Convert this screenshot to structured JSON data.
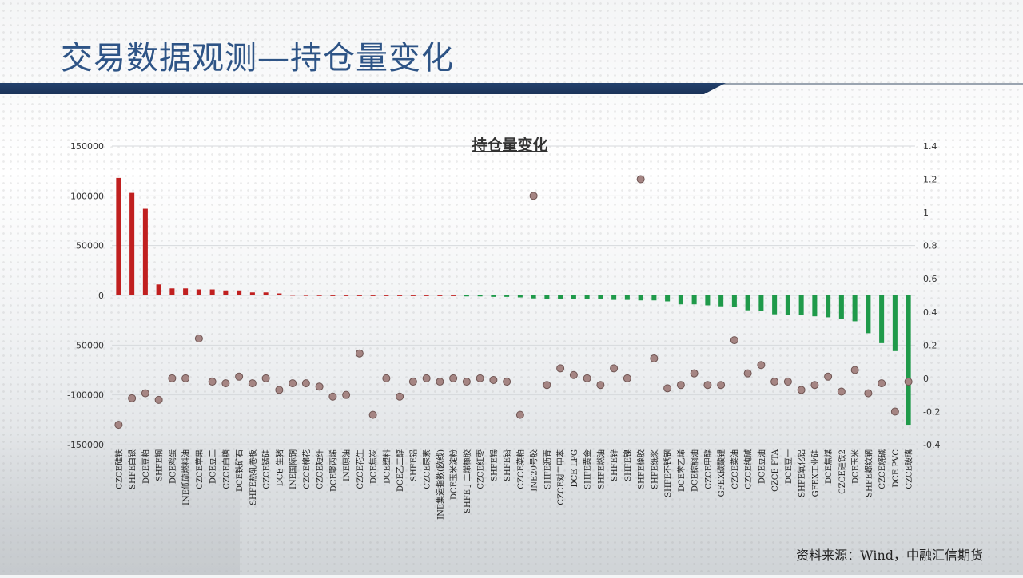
{
  "header": {
    "title": "交易数据观测—持仓量变化"
  },
  "source": "资料来源：Wind，中融汇信期货",
  "colors": {
    "pos_bar": "#c01f1f",
    "neg_bar": "#1f9a4a",
    "dot": "#a58583",
    "title_blue": "#2e5486"
  },
  "chart_data": {
    "type": "bar",
    "title": "持仓量变化",
    "xlabel": "",
    "ylabel": "",
    "ylim": [
      -150000,
      150000
    ],
    "y2lim": [
      -0.4,
      1.4
    ],
    "grid": true,
    "y_ticks": [
      -150000,
      -100000,
      -50000,
      0,
      50000,
      100000,
      150000
    ],
    "y2_ticks": [
      -0.4,
      -0.2,
      0,
      0.2,
      0.4,
      0.6,
      0.8,
      1,
      1.2,
      1.4
    ],
    "categories": [
      "CZCE硅铁",
      "SHFE白银",
      "DCE豆粕",
      "SHFE铜",
      "DCE鸡蛋",
      "INE低硫燃料油",
      "CZCE苹果",
      "DCE豆二",
      "CZCE白糖",
      "DCE铁矿石",
      "SHFE热轧卷板",
      "CZCE锰硅",
      "DCE 生猪",
      "INE国际铜",
      "CZCE棉花",
      "CZCE短纤",
      "DCE聚丙烯",
      "INE原油",
      "CZCE花生",
      "DCE焦炭",
      "DCE塑料",
      "DCE乙二醇",
      "SHFE铝",
      "CZCE尿素",
      "INE集运指数(欧线)",
      "DCE玉米淀粉",
      "SHFE丁二烯橡胶",
      "CZCE红枣",
      "SHFE锡",
      "SHFE铅",
      "CZCE菜粕",
      "INE20号胶",
      "SHFE沥青",
      "CZCE对二甲苯",
      "DCE LPG",
      "SHFE黄金",
      "SHFE燃油",
      "SHFE锌",
      "SHFE镍",
      "SHFE橡胶",
      "SHFE纸浆",
      "SHFE不锈钢",
      "DCE苯乙烯",
      "DCE棕榈油",
      "CZCE甲醇",
      "GFEX碳酸锂",
      "CZCE菜油",
      "CZCE纯碱",
      "DCE豆油",
      "CZCE PTA",
      "DCE豆一",
      "SHFE氧化铝",
      "GFEX工业硅",
      "DCE焦煤",
      "CZCE硅铁2",
      "DCE玉米",
      "SHFE螺纹钢",
      "CZCE烧碱",
      "DCE PVC",
      "CZCE玻璃"
    ],
    "series": [
      {
        "values": [
          118000,
          103000,
          87000,
          11000,
          7000,
          7000,
          6000,
          6000,
          5000,
          5000,
          3000,
          3000,
          2000,
          500,
          300,
          200,
          100,
          100,
          100,
          100,
          100,
          100,
          100,
          100,
          100,
          100,
          -1000,
          -1000,
          -1500,
          -1500,
          -2000,
          -3000,
          -3500,
          -3500,
          -4000,
          -4000,
          -4000,
          -4500,
          -4500,
          -5000,
          -5000,
          -6000,
          -9000,
          -9000,
          -10000,
          -11000,
          -12000,
          -15000,
          -16000,
          -19000,
          -20000,
          -20000,
          -21000,
          -22000,
          -24000,
          -26000,
          -38000,
          -48000,
          -56000,
          -130000
        ]
      },
      {
        "values": [
          -0.28,
          -0.12,
          -0.09,
          -0.13,
          0,
          0,
          0.24,
          -0.02,
          -0.03,
          0.01,
          -0.03,
          0,
          -0.07,
          -0.03,
          -0.03,
          -0.05,
          -0.11,
          -0.1,
          0.15,
          -0.22,
          0,
          -0.11,
          -0.02,
          0,
          -0.02,
          0,
          -0.02,
          0,
          -0.01,
          -0.02,
          -0.22,
          1.1,
          -0.04,
          0.06,
          0.02,
          0,
          -0.04,
          0.06,
          0,
          1.2,
          0.12,
          -0.06,
          -0.04,
          0.03,
          -0.04,
          -0.04,
          0.23,
          0.03,
          0.08,
          -0.02,
          -0.02,
          -0.07,
          -0.04,
          0.01,
          -0.08,
          0.05,
          -0.09,
          -0.03,
          -0.2,
          -0.02
        ]
      }
    ]
  }
}
